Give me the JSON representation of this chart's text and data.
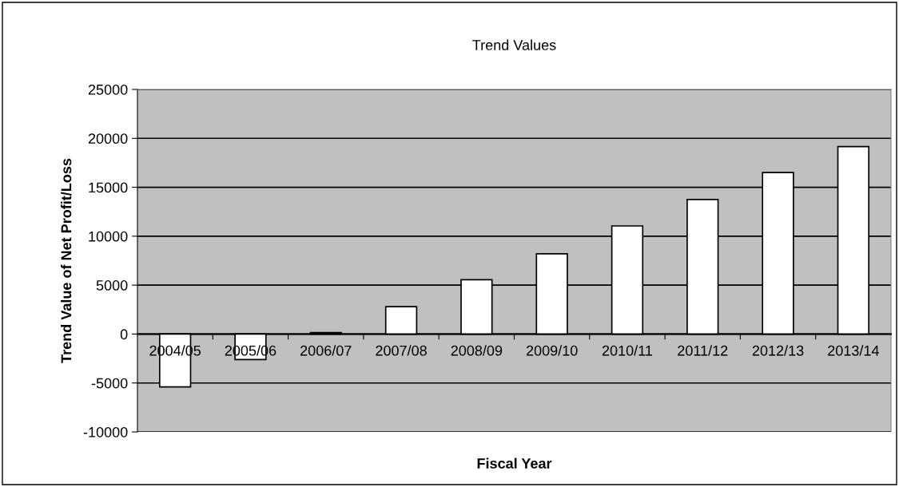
{
  "chart_data": {
    "type": "bar",
    "title": "Trend Values",
    "xlabel": "Fiscal Year",
    "ylabel": "Trend Value of Net Profit/Loss",
    "categories": [
      "2004/05",
      "2005/06",
      "2006/07",
      "2007/08",
      "2008/09",
      "2009/10",
      "2010/11",
      "2011/12",
      "2012/13",
      "2013/14"
    ],
    "values": [
      -5400,
      -2600,
      150,
      2800,
      5550,
      8200,
      11050,
      13750,
      16500,
      19150
    ],
    "color": "#ffffff",
    "ylim": [
      -10000,
      25000
    ],
    "yticks": [
      -10000,
      -5000,
      0,
      5000,
      10000,
      15000,
      20000,
      25000
    ],
    "grid": "y"
  }
}
